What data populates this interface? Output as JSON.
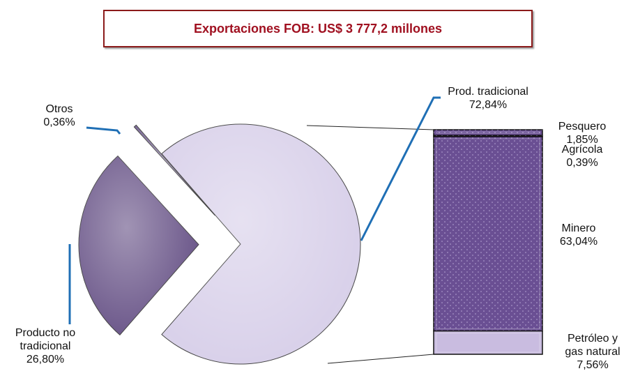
{
  "chart_data": {
    "type": "pie",
    "title": "Exportaciones FOB: US$ 3 777,2 millones",
    "categories": [
      "Prod. tradicional",
      "Otros",
      "Producto no tradicional"
    ],
    "values": [
      72.84,
      0.36,
      26.8
    ],
    "value_labels": [
      "72,84%",
      "0,36%",
      "26,80%"
    ],
    "colors": [
      "#d9d1ea",
      "#7b6a98",
      "#6e5a8c"
    ],
    "breakdown": {
      "of": 0,
      "categories": [
        "Pesquero",
        "Agrícola",
        "Minero",
        "Petróleo y gas natural"
      ],
      "values": [
        1.85,
        0.39,
        63.04,
        7.56
      ],
      "value_labels": [
        "1,85%",
        "0,39%",
        "63,04%",
        "7,56%"
      ],
      "colors": [
        "#6a4f93",
        "#5e4785",
        "#6a4f93",
        "#c9bce0"
      ]
    }
  }
}
